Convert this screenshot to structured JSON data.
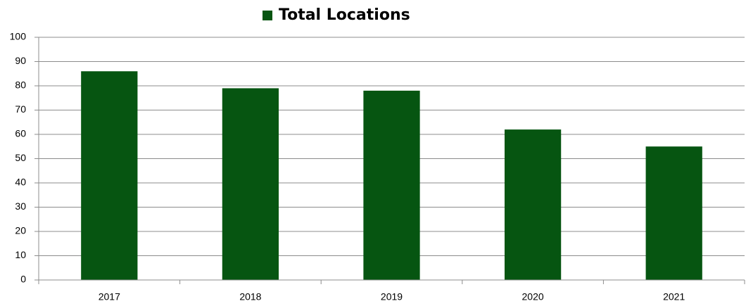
{
  "chart_data": {
    "type": "bar",
    "categories": [
      "2017",
      "2018",
      "2019",
      "2020",
      "2021"
    ],
    "series": [
      {
        "name": "Total Locations",
        "color": "#065511",
        "values": [
          86,
          79,
          78,
          62,
          55
        ]
      }
    ],
    "ylim": [
      0,
      100
    ],
    "yticks": [
      0,
      10,
      20,
      30,
      40,
      50,
      60,
      70,
      80,
      90,
      100
    ],
    "grid": true,
    "legend": "top"
  }
}
